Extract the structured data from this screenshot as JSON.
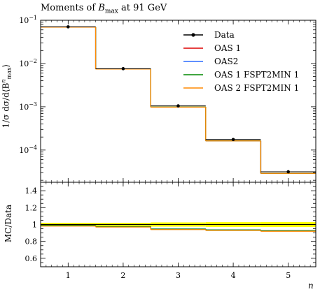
{
  "title": {
    "prefix": "Moments of ",
    "var": "B",
    "sub": "max",
    "suffix": " at 91 GeV"
  },
  "chart_data": [
    {
      "type": "line",
      "panel": "main",
      "ylabel": "1/σ dσ/d⟨B",
      "ylabel_sup": "n",
      "ylabel_sub": "max",
      "ylabel_end": "⟩",
      "yscale": "log",
      "ylim": [
        1.8e-05,
        0.1
      ],
      "xlim": [
        0.5,
        5.5
      ],
      "y_ticks": [
        {
          "value": 0.1,
          "base": "10",
          "exp": "−1"
        },
        {
          "value": 0.01,
          "base": "10",
          "exp": "−2"
        },
        {
          "value": 0.001,
          "base": "10",
          "exp": "−3"
        },
        {
          "value": 0.0001,
          "base": "10",
          "exp": "−4"
        }
      ],
      "bins": [
        [
          0.5,
          1.5
        ],
        [
          1.5,
          2.5
        ],
        [
          2.5,
          3.5
        ],
        [
          3.5,
          4.5
        ],
        [
          4.5,
          5.5
        ]
      ],
      "data": {
        "name": "Data",
        "x": [
          1,
          2,
          3,
          4,
          5
        ],
        "y": [
          0.0705,
          0.0076,
          0.00105,
          0.000175,
          3.15e-05
        ]
      },
      "series": [
        {
          "name": "OAS 1",
          "color": "#dd0000",
          "values": [
            0.0695,
            0.0075,
            0.00099,
            0.000164,
            2.9e-05
          ]
        },
        {
          "name": "OAS2",
          "color": "#2b6bff",
          "values": [
            0.0697,
            0.0075,
            0.00099,
            0.000164,
            2.9e-05
          ]
        },
        {
          "name": "OAS 1 FSPT2MIN 1",
          "color": "#008800",
          "values": [
            0.0696,
            0.0075,
            0.00099,
            0.000164,
            2.9e-05
          ]
        },
        {
          "name": "OAS 2 FSPT2MIN 1",
          "color": "#ff8800",
          "values": [
            0.0694,
            0.00745,
            0.00098,
            0.000163,
            2.89e-05
          ]
        }
      ],
      "legend": {
        "placement": "top-right",
        "data_label": "Data"
      }
    },
    {
      "type": "line",
      "panel": "ratio",
      "ylabel": "MC/Data",
      "ylim": [
        0.5,
        1.5
      ],
      "xlim": [
        0.5,
        5.5
      ],
      "y_ticks": [
        "0.6",
        "0.8",
        "1",
        "1.2",
        "1.4"
      ],
      "x_ticks": [
        "1",
        "2",
        "3",
        "4",
        "5"
      ],
      "xlabel": "n",
      "band": {
        "color": "#ffff00",
        "lo": [
          0.98,
          0.98,
          0.975,
          0.972,
          0.97
        ],
        "hi": [
          1.02,
          1.02,
          1.025,
          1.028,
          1.03
        ]
      },
      "series": [
        {
          "name": "OAS 1",
          "color": "#dd0000",
          "values": [
            0.985,
            0.975,
            0.945,
            0.935,
            0.925
          ]
        },
        {
          "name": "OAS2",
          "color": "#2b6bff",
          "values": [
            0.988,
            0.977,
            0.947,
            0.937,
            0.927
          ]
        },
        {
          "name": "OAS 1 FSPT2MIN 1",
          "color": "#008800",
          "values": [
            0.99,
            0.976,
            0.946,
            0.936,
            0.926
          ]
        },
        {
          "name": "OAS 2 FSPT2MIN 1",
          "color": "#ff8800",
          "values": [
            0.982,
            0.97,
            0.94,
            0.93,
            0.92
          ]
        }
      ]
    }
  ]
}
